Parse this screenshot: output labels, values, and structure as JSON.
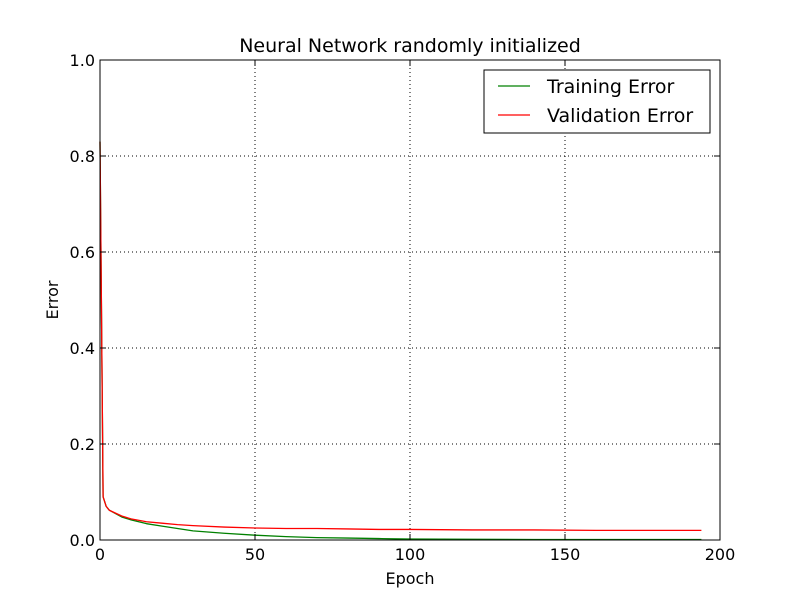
{
  "chart_data": {
    "type": "line",
    "title": "Neural Network randomly initialized",
    "xlabel": "Epoch",
    "ylabel": "Error",
    "xlim": [
      0,
      200
    ],
    "ylim": [
      0,
      1.0
    ],
    "xticks": [
      "0",
      "50",
      "100",
      "150",
      "200"
    ],
    "yticks": [
      "0.0",
      "0.2",
      "0.4",
      "0.6",
      "0.8",
      "1.0"
    ],
    "grid": true,
    "legend_position": "top-right",
    "series": [
      {
        "name": "Training Error",
        "color": "#008000",
        "x": [
          0,
          1,
          2,
          3,
          5,
          7,
          10,
          15,
          20,
          25,
          30,
          40,
          50,
          60,
          70,
          80,
          90,
          100,
          120,
          140,
          160,
          180,
          194
        ],
        "y": [
          0.83,
          0.09,
          0.07,
          0.062,
          0.055,
          0.048,
          0.042,
          0.034,
          0.029,
          0.024,
          0.019,
          0.014,
          0.01,
          0.007,
          0.005,
          0.004,
          0.003,
          0.002,
          0.0015,
          0.001,
          0.001,
          0.001,
          0.001
        ]
      },
      {
        "name": "Validation Error",
        "color": "#ff0000",
        "x": [
          0,
          1,
          2,
          3,
          5,
          7,
          10,
          15,
          20,
          25,
          30,
          40,
          50,
          60,
          70,
          80,
          90,
          100,
          120,
          140,
          160,
          180,
          194
        ],
        "y": [
          0.83,
          0.09,
          0.07,
          0.062,
          0.056,
          0.05,
          0.044,
          0.038,
          0.035,
          0.032,
          0.03,
          0.027,
          0.025,
          0.024,
          0.024,
          0.023,
          0.022,
          0.022,
          0.021,
          0.021,
          0.02,
          0.02,
          0.02
        ]
      }
    ]
  }
}
